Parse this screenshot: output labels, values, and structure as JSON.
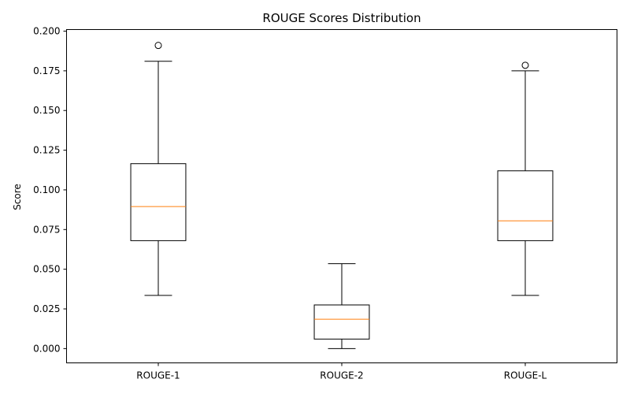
{
  "chart_data": {
    "type": "box",
    "title": "ROUGE Scores Distribution",
    "xlabel": "",
    "ylabel": "Score",
    "ylim": [
      -0.009,
      0.201
    ],
    "yticks": [
      0.0,
      0.025,
      0.05,
      0.075,
      0.1,
      0.125,
      0.15,
      0.175,
      0.2
    ],
    "ytick_labels": [
      "0.000",
      "0.025",
      "0.050",
      "0.075",
      "0.100",
      "0.125",
      "0.150",
      "0.175",
      "0.200"
    ],
    "grid": false,
    "categories": [
      "ROUGE-1",
      "ROUGE-2",
      "ROUGE-L"
    ],
    "boxes": [
      {
        "category": "ROUGE-1",
        "whisker_low": 0.0335,
        "q1": 0.068,
        "median": 0.0895,
        "q3": 0.1165,
        "whisker_high": 0.181,
        "outliers": [
          0.191
        ]
      },
      {
        "category": "ROUGE-2",
        "whisker_low": 0.0,
        "q1": 0.006,
        "median": 0.0185,
        "q3": 0.0275,
        "whisker_high": 0.0535,
        "outliers": []
      },
      {
        "category": "ROUGE-L",
        "whisker_low": 0.0335,
        "q1": 0.068,
        "median": 0.0805,
        "q3": 0.112,
        "whisker_high": 0.175,
        "outliers": [
          0.1785
        ]
      }
    ],
    "colors": {
      "box": "#000000",
      "median": "#ff7f0e",
      "background": "#ffffff"
    }
  }
}
